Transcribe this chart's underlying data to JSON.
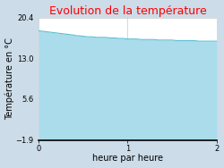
{
  "title": "Evolution de la température",
  "xlabel": "heure par heure",
  "ylabel": "Température en °C",
  "ylim": [
    -1.9,
    20.4
  ],
  "xlim": [
    0,
    2
  ],
  "yticks": [
    -1.9,
    5.6,
    13.0,
    20.4
  ],
  "xticks": [
    0,
    1,
    2
  ],
  "title_color": "#ff0000",
  "line_color": "#5bbfcf",
  "fill_color": "#aadcec",
  "bg_outer": "#ccdce8",
  "bg_plot_above": "#ffffff",
  "bg_plot_below": "#aadcec",
  "grid_color": "#bbbbbb",
  "spine_color": "#000000",
  "x_data": [
    0.0,
    0.05,
    0.1,
    0.15,
    0.2,
    0.25,
    0.3,
    0.35,
    0.4,
    0.42,
    0.45,
    0.5,
    0.55,
    0.6,
    0.65,
    0.7,
    0.75,
    0.8,
    0.85,
    0.9,
    0.95,
    1.0,
    1.05,
    1.1,
    1.15,
    1.2,
    1.25,
    1.3,
    1.35,
    1.4,
    1.45,
    1.5,
    1.55,
    1.6,
    1.65,
    1.7,
    1.75,
    1.8,
    1.85,
    1.9,
    1.95,
    2.0
  ],
  "y_data": [
    18.0,
    17.9,
    17.8,
    17.7,
    17.6,
    17.5,
    17.4,
    17.3,
    17.2,
    17.1,
    17.1,
    17.0,
    16.9,
    16.9,
    16.8,
    16.8,
    16.8,
    16.7,
    16.7,
    16.6,
    16.6,
    16.5,
    16.5,
    16.5,
    16.4,
    16.4,
    16.4,
    16.4,
    16.3,
    16.3,
    16.3,
    16.3,
    16.2,
    16.2,
    16.2,
    16.2,
    16.2,
    16.1,
    16.1,
    16.1,
    16.1,
    16.1
  ],
  "title_fontsize": 9,
  "tick_fontsize": 6,
  "label_fontsize": 7
}
